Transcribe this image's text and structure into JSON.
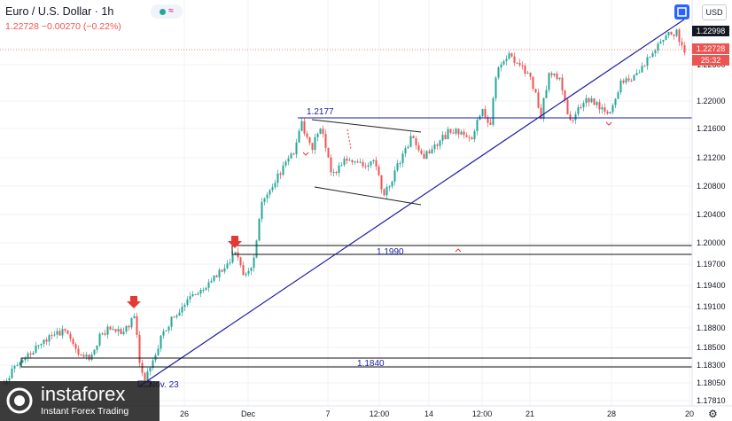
{
  "header": {
    "title": "Euro / U.S. Dollar · 1h",
    "quote": "1.22728 −0.00270 (−0.22%)",
    "currency": "USD"
  },
  "price_axis": {
    "labels": [
      "1.22998",
      "1.22728",
      "25:32",
      "1.22300",
      "1.22000",
      "1.21600",
      "1.21200",
      "1.20800",
      "1.20400",
      "1.20000",
      "1.19700",
      "1.19400",
      "1.19100",
      "1.18800",
      "1.18500",
      "1.18300",
      "1.18050",
      "1.17810"
    ]
  },
  "time_axis": {
    "labels": [
      "26",
      "Dec",
      "7",
      "12:00",
      "14",
      "12:00",
      "21",
      "28",
      "20"
    ]
  },
  "annotations": {
    "level_top": "1.2177",
    "level_mid": "1.1990",
    "level_low": "1.1840",
    "date_note": "Nov. 23"
  },
  "logo": {
    "name": "instaforex",
    "tagline": "Instant Forex Trading"
  },
  "colors": {
    "up": "#26a69a",
    "down": "#ef5350",
    "line": "#1a1aa6",
    "arrow": "#e53935"
  }
}
